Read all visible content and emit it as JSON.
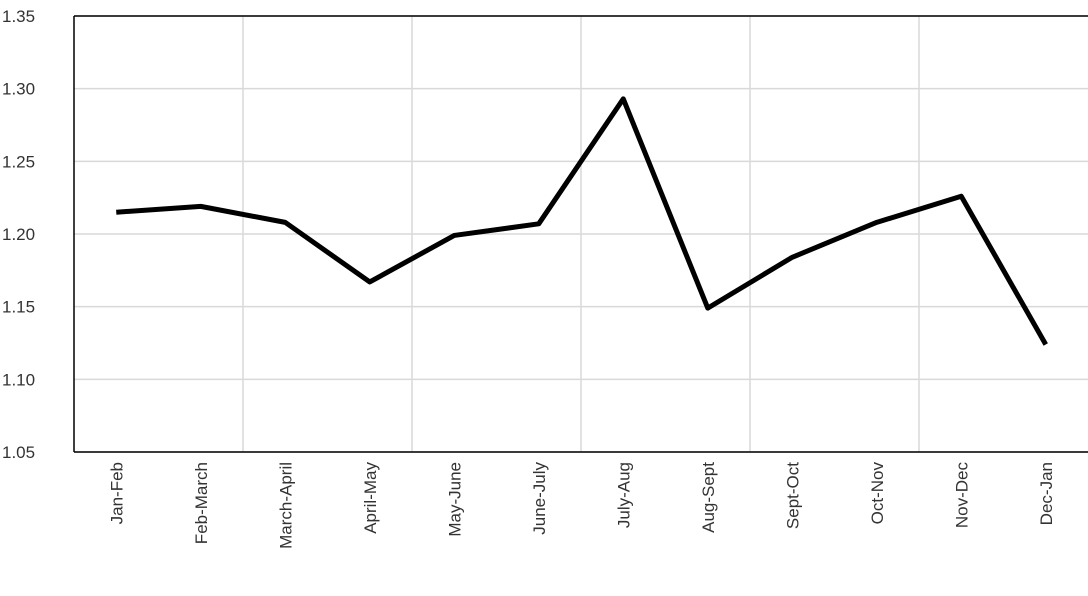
{
  "chart_data": {
    "type": "line",
    "categories": [
      "Jan-Feb",
      "Feb-March",
      "March-April",
      "April-May",
      "May-June",
      "June-July",
      "July-Aug",
      "Aug-Sept",
      "Sept-Oct",
      "Oct-Nov",
      "Nov-Dec",
      "Dec-Jan"
    ],
    "values": [
      1.215,
      1.219,
      1.208,
      1.167,
      1.199,
      1.207,
      1.293,
      1.149,
      1.184,
      1.208,
      1.226,
      1.124
    ],
    "color": "#000000",
    "ylim": [
      1.05,
      1.35
    ],
    "yticks": [
      1.05,
      {
        "value": 1.1,
        "label": "1.10"
      },
      1.15,
      {
        "value": 1.2,
        "label": "1.20"
      },
      1.25,
      {
        "value": 1.3,
        "label": "1.30"
      },
      1.35
    ],
    "grid": true
  }
}
